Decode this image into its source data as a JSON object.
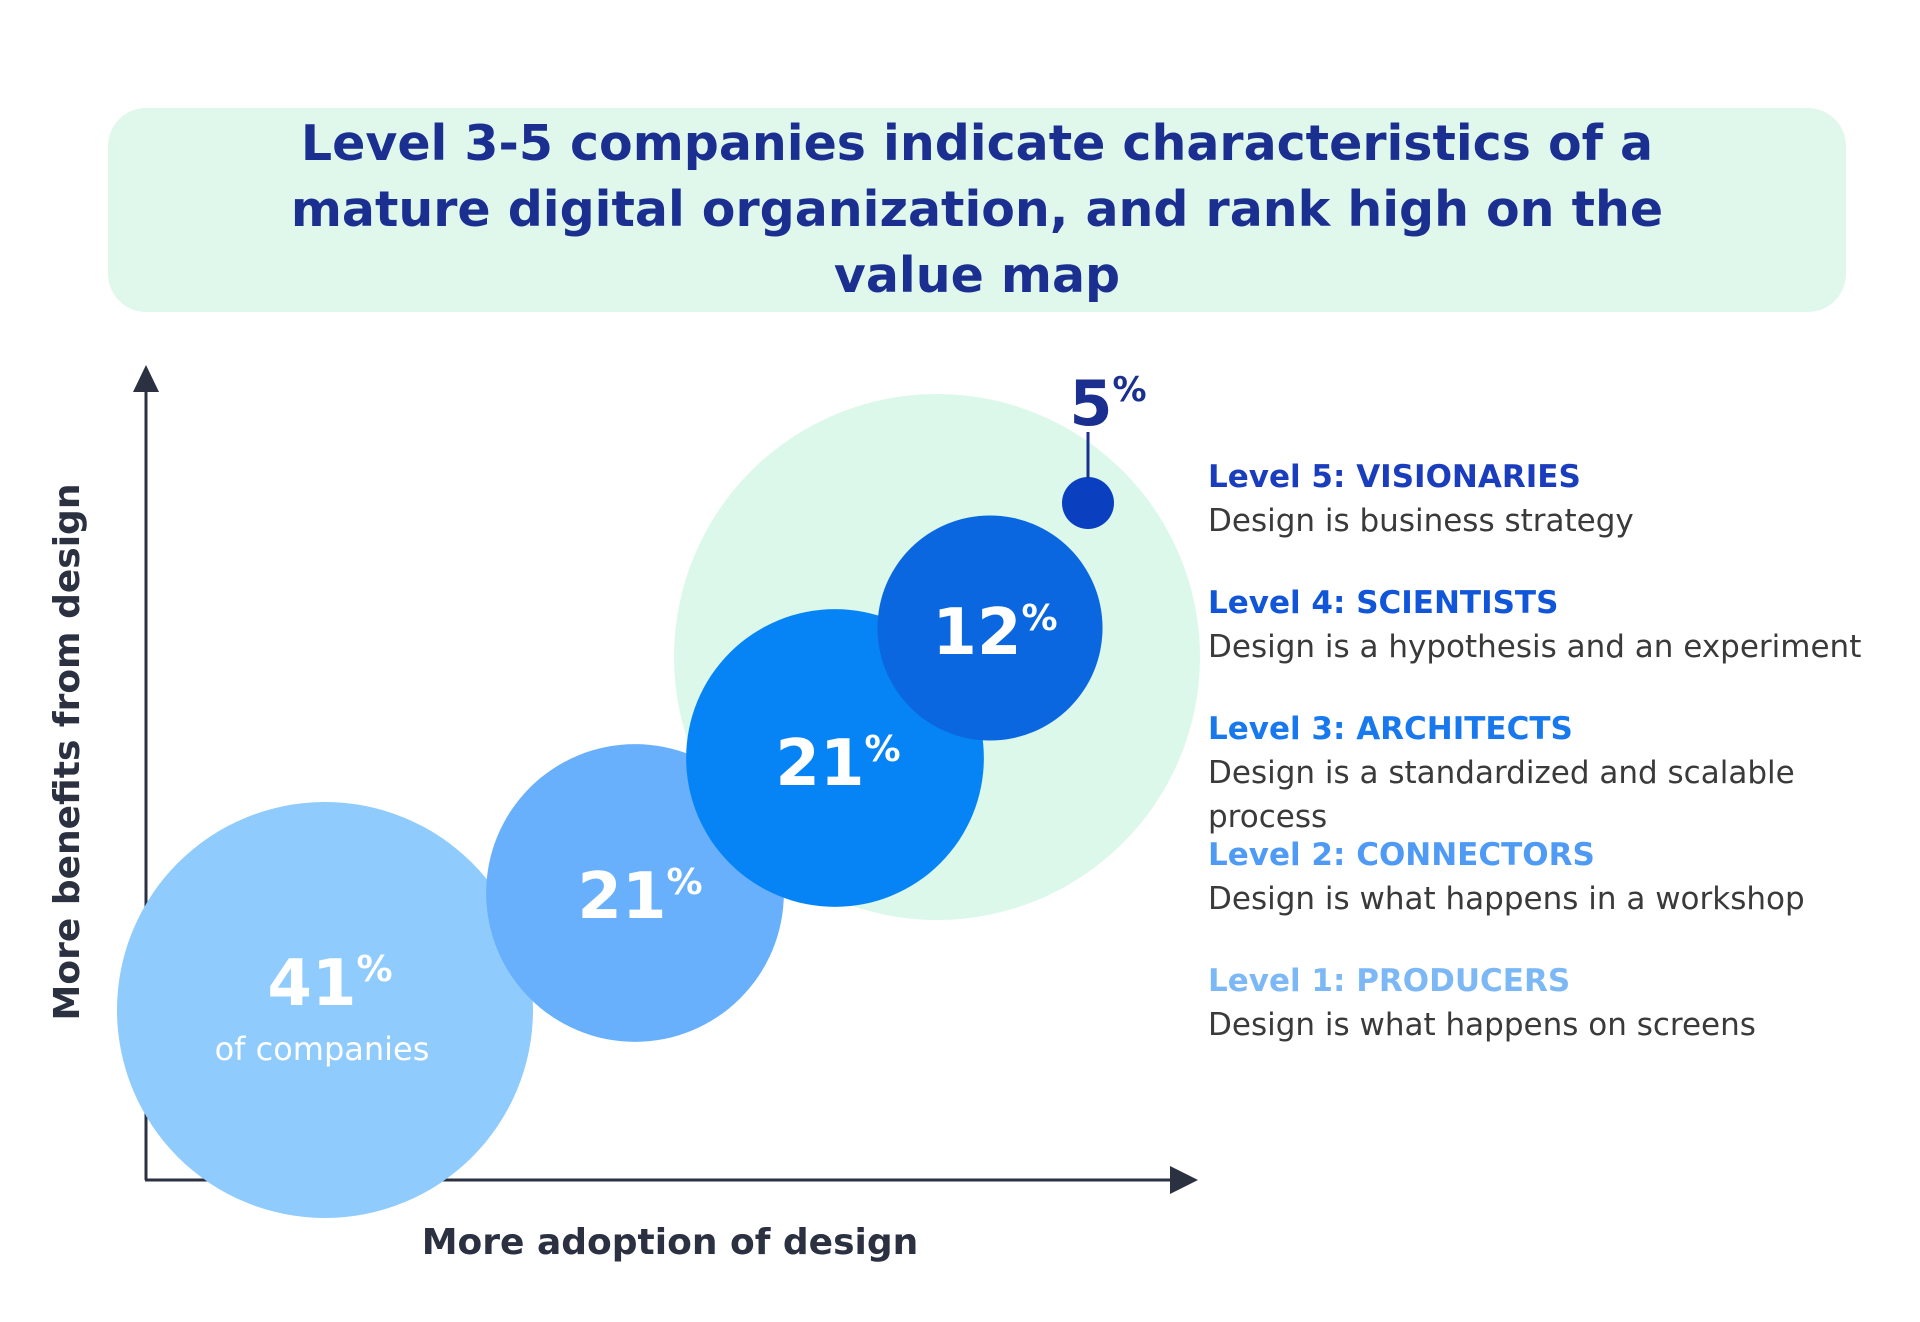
{
  "title": "Level 3-5 companies indicate characteristics of a mature digital organization, and rank high on the value map",
  "chart_data": {
    "type": "bubble",
    "xlabel": "More adoption of design",
    "ylabel": "More benefits from design",
    "group_highlight": {
      "levels": [
        3,
        4,
        5
      ],
      "color": "#dcf8ea"
    },
    "points": [
      {
        "level": 1,
        "value": 41,
        "label": "41",
        "unit": "%",
        "caption": "of companies",
        "color": "#8fcbfd",
        "text_color": "#ffffff"
      },
      {
        "level": 2,
        "value": 21,
        "label": "21",
        "unit": "%",
        "caption": "",
        "color": "#68b0fc",
        "text_color": "#ffffff"
      },
      {
        "level": 3,
        "value": 21,
        "label": "21",
        "unit": "%",
        "caption": "",
        "color": "#0684f5",
        "text_color": "#ffffff"
      },
      {
        "level": 4,
        "value": 12,
        "label": "12",
        "unit": "%",
        "caption": "",
        "color": "#0b67e0",
        "text_color": "#ffffff"
      },
      {
        "level": 5,
        "value": 5,
        "label": "5",
        "unit": "%",
        "caption": "",
        "color": "#0a3fc0",
        "text_color": "#1a2f8f"
      }
    ]
  },
  "legend": [
    {
      "name": "Level 5: VISIONARIES",
      "desc": "Design is business strategy",
      "color": "#1a3dbd"
    },
    {
      "name": "Level 4: SCIENTISTS",
      "desc": "Design is a hypothesis and an experiment",
      "color": "#1155d8"
    },
    {
      "name": "Level 3: ARCHITECTS",
      "desc": "Design is a standardized and scalable process",
      "color": "#1878ee"
    },
    {
      "name": "Level 2: CONNECTORS",
      "desc": "Design is what happens in a workshop",
      "color": "#4f9af5"
    },
    {
      "name": "Level 1: PRODUCERS",
      "desc": "Design is what happens on screens",
      "color": "#7cb8f6"
    }
  ],
  "colors": {
    "axis": "#2b3140",
    "banner_bg": "#e0f8ec",
    "title": "#1a2f8f"
  }
}
